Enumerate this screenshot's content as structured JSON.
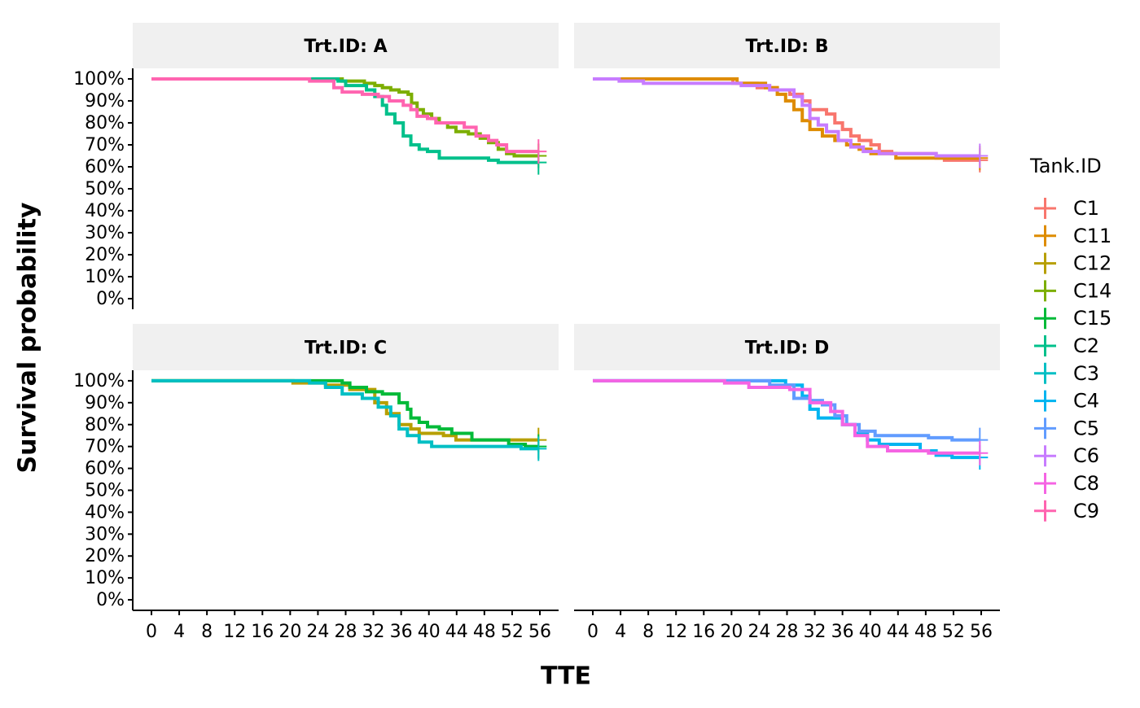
{
  "chart_data": {
    "type": "step",
    "xlabel": "TTE",
    "ylabel": "Survival probability",
    "legend_title": "Tank.ID",
    "xlim": [
      -2.7,
      58.7
    ],
    "ylim": [
      -4.8,
      104.8
    ],
    "xticks": [
      0,
      4,
      8,
      12,
      16,
      20,
      24,
      28,
      32,
      36,
      40,
      44,
      48,
      52,
      56
    ],
    "yticks": [
      {
        "value": 0,
        "label": "0%"
      },
      {
        "value": 10,
        "label": "10%"
      },
      {
        "value": 20,
        "label": "20%"
      },
      {
        "value": 30,
        "label": "30%"
      },
      {
        "value": 40,
        "label": "40%"
      },
      {
        "value": 50,
        "label": "50%"
      },
      {
        "value": 60,
        "label": "60%"
      },
      {
        "value": 70,
        "label": "70%"
      },
      {
        "value": 80,
        "label": "80%"
      },
      {
        "value": 90,
        "label": "90%"
      },
      {
        "value": 100,
        "label": "100%"
      }
    ],
    "facets": [
      {
        "title": "Trt.ID: A",
        "series": [
          {
            "name": "C14",
            "color": "#7CAE00",
            "x": [
              0,
              27.5,
              30.7,
              32.2,
              33.3,
              34.5,
              35.7,
              37,
              37.5,
              38.3,
              39.2,
              40.4,
              41.5,
              42.7,
              43.9,
              45.7,
              47.4,
              48.6,
              50,
              51.2,
              52.3,
              55.8
            ],
            "values": [
              100,
              99,
              98,
              97,
              96,
              95,
              94,
              93,
              89,
              86,
              84,
              82,
              80,
              78,
              76,
              75,
              73,
              71,
              68,
              66,
              65,
              65
            ]
          },
          {
            "name": "C2",
            "color": "#00C08B",
            "x": [
              0,
              26.9,
              28,
              31,
              32.2,
              33.3,
              33.9,
              35.1,
              36.3,
              37.4,
              38.6,
              39.8,
              41.5,
              48.6,
              50,
              55.8
            ],
            "values": [
              100,
              99,
              97,
              95,
              92,
              88,
              84,
              80,
              74,
              70,
              68,
              67,
              64,
              63,
              62,
              62
            ]
          },
          {
            "name": "C9",
            "color": "#FF64B0",
            "x": [
              0,
              22.8,
              26.3,
              27.5,
              30.4,
              32.7,
              34.3,
              36.3,
              37.4,
              38.3,
              39.8,
              41,
              45.1,
              46.8,
              48.6,
              49.8,
              51.2,
              55.8
            ],
            "values": [
              100,
              99,
              96,
              94,
              93,
              92,
              90,
              88,
              86,
              83,
              82,
              80,
              78,
              74,
              72,
              70,
              67,
              67
            ]
          }
        ]
      },
      {
        "title": "Trt.ID: B",
        "series": [
          {
            "name": "C1",
            "color": "#F8766D",
            "x": [
              0,
              20.2,
              23.7,
              26.6,
              28.4,
              30.2,
              31.3,
              33.7,
              34.9,
              36,
              37.2,
              38.4,
              40.1,
              41.3,
              43.1,
              49.5,
              50.7,
              55.8
            ],
            "values": [
              100,
              98,
              96,
              95,
              93,
              90,
              86,
              84,
              80,
              77,
              74,
              72,
              70,
              67,
              66,
              64,
              63,
              63
            ]
          },
          {
            "name": "C11",
            "color": "#DE8C00",
            "x": [
              0,
              20.8,
              24.9,
              26.6,
              27.8,
              29,
              30.2,
              31.3,
              33.1,
              34.9,
              36.6,
              38.4,
              40.1,
              43.7,
              55.8
            ],
            "values": [
              100,
              98,
              96,
              93,
              90,
              86,
              81,
              77,
              74,
              72,
              70,
              68,
              66,
              64,
              64
            ]
          },
          {
            "name": "C6",
            "color": "#C77CFF",
            "x": [
              0,
              3.8,
              7.3,
              21.4,
              25.5,
              29,
              30.2,
              31.3,
              32.5,
              33.7,
              35.4,
              37.2,
              39,
              41.3,
              49.5,
              55.8
            ],
            "values": [
              100,
              99,
              98,
              97,
              95,
              92,
              88,
              82,
              79,
              76,
              72,
              69,
              67,
              66,
              65,
              65
            ]
          }
        ]
      },
      {
        "title": "Trt.ID: C",
        "series": [
          {
            "name": "C12",
            "color": "#B79F00",
            "x": [
              0,
              20.4,
              25.1,
              28.6,
              32.2,
              33.9,
              35.7,
              37.4,
              38.6,
              42.1,
              43.9,
              55.8
            ],
            "values": [
              100,
              99,
              98,
              96,
              90,
              85,
              80,
              78,
              76,
              75,
              73,
              73
            ]
          },
          {
            "name": "C15",
            "color": "#00BA38",
            "x": [
              0,
              27.5,
              28.6,
              31,
              33.3,
              35.7,
              36.9,
              37.4,
              38.6,
              39.8,
              41.5,
              43.3,
              46.2,
              51.5,
              53.9,
              55.8
            ],
            "values": [
              100,
              99,
              97,
              95,
              94,
              90,
              87,
              83,
              81,
              79,
              78,
              76,
              73,
              71,
              70,
              70
            ]
          },
          {
            "name": "C3",
            "color": "#00BFC4",
            "x": [
              0,
              22.8,
              25.1,
              27.5,
              30.4,
              32.7,
              34.5,
              35.7,
              36.9,
              38.6,
              40.4,
              53.3,
              55.8
            ],
            "values": [
              100,
              99,
              97,
              94,
              92,
              88,
              84,
              78,
              75,
              72,
              70,
              69,
              69
            ]
          }
        ]
      },
      {
        "title": "Trt.ID: D",
        "series": [
          {
            "name": "C4",
            "color": "#00B4F0",
            "x": [
              0,
              27.8,
              30.2,
              31.3,
              32.5,
              36,
              37.8,
              39.6,
              41.3,
              47.2,
              49.5,
              51.8,
              55.8
            ],
            "values": [
              100,
              98,
              93,
              87,
              83,
              80,
              76,
              73,
              71,
              68,
              66,
              65,
              65
            ]
          },
          {
            "name": "C5",
            "color": "#619CFF",
            "x": [
              0,
              25.5,
              29,
              31.3,
              33.1,
              34.9,
              36.6,
              38.4,
              40.7,
              48.4,
              51.8,
              55.8
            ],
            "values": [
              100,
              98,
              92,
              91,
              89,
              84,
              80,
              77,
              75,
              74,
              73,
              73
            ]
          },
          {
            "name": "C8",
            "color": "#F564E3",
            "x": [
              0,
              19,
              22.5,
              28.4,
              31.3,
              34.3,
              36,
              37.8,
              39.6,
              42.5,
              48.4,
              55.8
            ],
            "values": [
              100,
              99,
              97,
              96,
              90,
              86,
              80,
              75,
              70,
              68,
              67,
              67
            ]
          }
        ]
      }
    ]
  }
}
